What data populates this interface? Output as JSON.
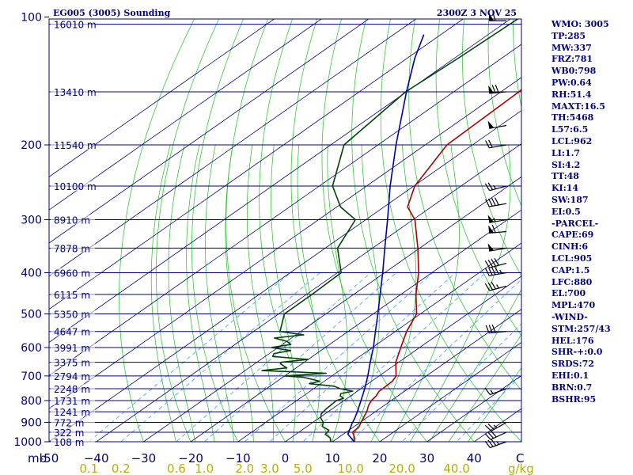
{
  "header": {
    "station": "EG005 (3005) Sounding",
    "time": "2300Z  3 NOV 25"
  },
  "indices": [
    "WMO: 3005",
    "TP:285",
    "MW:337",
    "FRZ:781",
    "WB0:798",
    "PW:0.64",
    "RH:51.4",
    "MAXT:16.5",
    "TH:5468",
    "L57:6.5",
    "LCL:962",
    "LI:1.7",
    "SI:4.2",
    "TT:48",
    "KI:14",
    "SW:187",
    "EI:0.5",
    "-PARCEL-",
    "CAPE:69",
    "CINH:6",
    "LCL:905",
    "CAP:1.5",
    "LFC:880",
    "EL:700",
    "MPL:470",
    "-WIND-",
    "STM:257/43",
    "HEL:176",
    "SHR-+:0.0",
    "SRDS:72",
    "EHI:0.1",
    "BRN:0.7",
    "BSHR:95"
  ],
  "colors": {
    "background": "#ffffff",
    "isobar": "#000080",
    "isotherm": "#000080",
    "dry_adiabat": "#33cc33",
    "moist_adiabat": "#22bb22",
    "mixing_ratio": "#44aaee",
    "temperature": "#aa0000",
    "dewpoint": "#004400",
    "parcel": "#0000aa",
    "wind_barb": "#000000",
    "wmr_text": "#b8b000"
  },
  "chart_data": {
    "type": "skew-t",
    "title": "EG005 (3005) Sounding",
    "xlabel": "C",
    "ylabel": "mb",
    "x_range": [
      -50,
      50
    ],
    "y_range": [
      1000,
      100
    ],
    "y_scale": "log",
    "pressure_ticks": [
      100,
      200,
      300,
      400,
      500,
      600,
      700,
      800,
      900,
      1000
    ],
    "pressure_labels": [
      "100",
      "200",
      "300",
      "400",
      "500",
      "600",
      "700",
      "800",
      "900",
      "1000"
    ],
    "temperature_ticks": [
      -50,
      -40,
      -30,
      -20,
      -10,
      0,
      10,
      20,
      30,
      40
    ],
    "temperature_labels": [
      "-50",
      "−40",
      "−30",
      "−20",
      "−10",
      "0",
      "10",
      "20",
      "30",
      "40"
    ],
    "mixing_ratio_ticks": [
      0.1,
      0.2,
      0.6,
      1.0,
      2.0,
      3.0,
      5.0,
      10.0,
      20.0,
      40.0
    ],
    "mixing_ratio_labels": [
      "0.1",
      "0.2",
      "0.6",
      "1.0",
      "2.0",
      "3.0",
      "5.0",
      "10.0",
      "20.0",
      "40.0"
    ],
    "mixing_ratio_unit": "g/kg",
    "heights": [
      {
        "p": 104,
        "label": "16010 m"
      },
      {
        "p": 150,
        "label": "13410 m"
      },
      {
        "p": 200,
        "label": "11540 m"
      },
      {
        "p": 250,
        "label": "10100 m"
      },
      {
        "p": 300,
        "label": "8910 m"
      },
      {
        "p": 350,
        "label": "7878 m"
      },
      {
        "p": 400,
        "label": "6960 m"
      },
      {
        "p": 450,
        "label": "6115 m"
      },
      {
        "p": 500,
        "label": "5350 m"
      },
      {
        "p": 550,
        "label": "4647 m"
      },
      {
        "p": 600,
        "label": "3991 m"
      },
      {
        "p": 650,
        "label": "3375 m"
      },
      {
        "p": 700,
        "label": "2794 m"
      },
      {
        "p": 750,
        "label": "2248 m"
      },
      {
        "p": 800,
        "label": "1731 m"
      },
      {
        "p": 850,
        "label": "1241 m"
      },
      {
        "p": 900,
        "label": "772 m"
      },
      {
        "p": 950,
        "label": "322 m"
      },
      {
        "p": 1000,
        "label": "108 m"
      }
    ],
    "series": [
      {
        "name": "temperature",
        "points": [
          [
            1016,
            15.8
          ],
          [
            1000,
            14.6
          ],
          [
            980,
            13.6
          ],
          [
            950,
            11.4
          ],
          [
            925,
            11.2
          ],
          [
            900,
            10.2
          ],
          [
            870,
            9.0
          ],
          [
            850,
            8.2
          ],
          [
            820,
            6.6
          ],
          [
            800,
            5.8
          ],
          [
            780,
            5.4
          ],
          [
            760,
            4.6
          ],
          [
            750,
            4.6
          ],
          [
            720,
            4.4
          ],
          [
            700,
            3.6
          ],
          [
            650,
            -0.6
          ],
          [
            600,
            -4.0
          ],
          [
            550,
            -7.6
          ],
          [
            500,
            -10.8
          ],
          [
            450,
            -16.8
          ],
          [
            400,
            -22.8
          ],
          [
            350,
            -30.4
          ],
          [
            300,
            -39.6
          ],
          [
            280,
            -45.0
          ],
          [
            250,
            -49.8
          ],
          [
            200,
            -55.4
          ],
          [
            150,
            -56.2
          ],
          [
            125,
            -58.2
          ],
          [
            100,
            -61.6
          ]
        ]
      },
      {
        "name": "dewpoint",
        "points": [
          [
            1000,
            9.6
          ],
          [
            980,
            8.4
          ],
          [
            960,
            6.2
          ],
          [
            940,
            5.8
          ],
          [
            920,
            3.2
          ],
          [
            900,
            2.2
          ],
          [
            880,
            0.4
          ],
          [
            860,
            -0.8
          ],
          [
            840,
            -1.2
          ],
          [
            820,
            -1.4
          ],
          [
            800,
            -1.6
          ],
          [
            790,
            -0.8
          ],
          [
            780,
            -2.2
          ],
          [
            770,
            -2.8
          ],
          [
            760,
            -1.0
          ],
          [
            750,
            -4.4
          ],
          [
            740,
            -6.4
          ],
          [
            730,
            -12.4
          ],
          [
            720,
            -11.0
          ],
          [
            705,
            -15.6
          ],
          [
            700,
            -20.0
          ],
          [
            690,
            -12.0
          ],
          [
            680,
            -26.4
          ],
          [
            670,
            -22.0
          ],
          [
            655,
            -24.6
          ],
          [
            650,
            -24.8
          ],
          [
            640,
            -20.0
          ],
          [
            630,
            -28.4
          ],
          [
            620,
            -29.0
          ],
          [
            610,
            -26.4
          ],
          [
            600,
            -31.4
          ],
          [
            590,
            -28.2
          ],
          [
            580,
            -30.0
          ],
          [
            570,
            -33.6
          ],
          [
            560,
            -28.4
          ],
          [
            550,
            -34.4
          ],
          [
            500,
            -38.8
          ],
          [
            450,
            -38.8
          ],
          [
            400,
            -39.2
          ],
          [
            350,
            -47.4
          ],
          [
            300,
            -52.2
          ],
          [
            280,
            -59.2
          ],
          [
            250,
            -67.2
          ],
          [
            200,
            -77.2
          ],
          [
            150,
            -80.2
          ],
          [
            125,
            -79.2
          ],
          [
            100,
            -78.4
          ]
        ]
      },
      {
        "name": "parcel",
        "points": [
          [
            1016,
            15.8
          ],
          [
            1000,
            14.6
          ],
          [
            960,
            11.0
          ],
          [
            905,
            8.6
          ],
          [
            880,
            7.6
          ],
          [
            850,
            6.2
          ],
          [
            800,
            3.6
          ],
          [
            750,
            0.8
          ],
          [
            700,
            -2.4
          ],
          [
            650,
            -6.0
          ],
          [
            600,
            -9.8
          ],
          [
            550,
            -14.2
          ],
          [
            500,
            -19.0
          ],
          [
            450,
            -24.4
          ],
          [
            400,
            -30.4
          ],
          [
            350,
            -37.4
          ],
          [
            300,
            -45.4
          ],
          [
            250,
            -55.0
          ],
          [
            200,
            -66.2
          ],
          [
            150,
            -80.0
          ],
          [
            125,
            -88.4
          ],
          [
            110,
            -93.6
          ]
        ]
      }
    ],
    "wind_barbs": [
      {
        "p": 102,
        "dir": 270,
        "speed": 60
      },
      {
        "p": 150,
        "dir": 265,
        "speed": 70
      },
      {
        "p": 180,
        "dir": 260,
        "speed": 50
      },
      {
        "p": 200,
        "dir": 260,
        "speed": 20
      },
      {
        "p": 250,
        "dir": 255,
        "speed": 25
      },
      {
        "p": 275,
        "dir": 260,
        "speed": 40
      },
      {
        "p": 300,
        "dir": 260,
        "speed": 55
      },
      {
        "p": 320,
        "dir": 265,
        "speed": 60
      },
      {
        "p": 350,
        "dir": 260,
        "speed": 50
      },
      {
        "p": 380,
        "dir": 255,
        "speed": 40
      },
      {
        "p": 400,
        "dir": 260,
        "speed": 45
      },
      {
        "p": 430,
        "dir": 255,
        "speed": 35
      },
      {
        "p": 550,
        "dir": 265,
        "speed": 30
      },
      {
        "p": 750,
        "dir": 250,
        "speed": 15
      },
      {
        "p": 900,
        "dir": 240,
        "speed": 25
      },
      {
        "p": 950,
        "dir": 245,
        "speed": 30
      },
      {
        "p": 1000,
        "dir": 250,
        "speed": 35
      }
    ],
    "grid": true
  }
}
